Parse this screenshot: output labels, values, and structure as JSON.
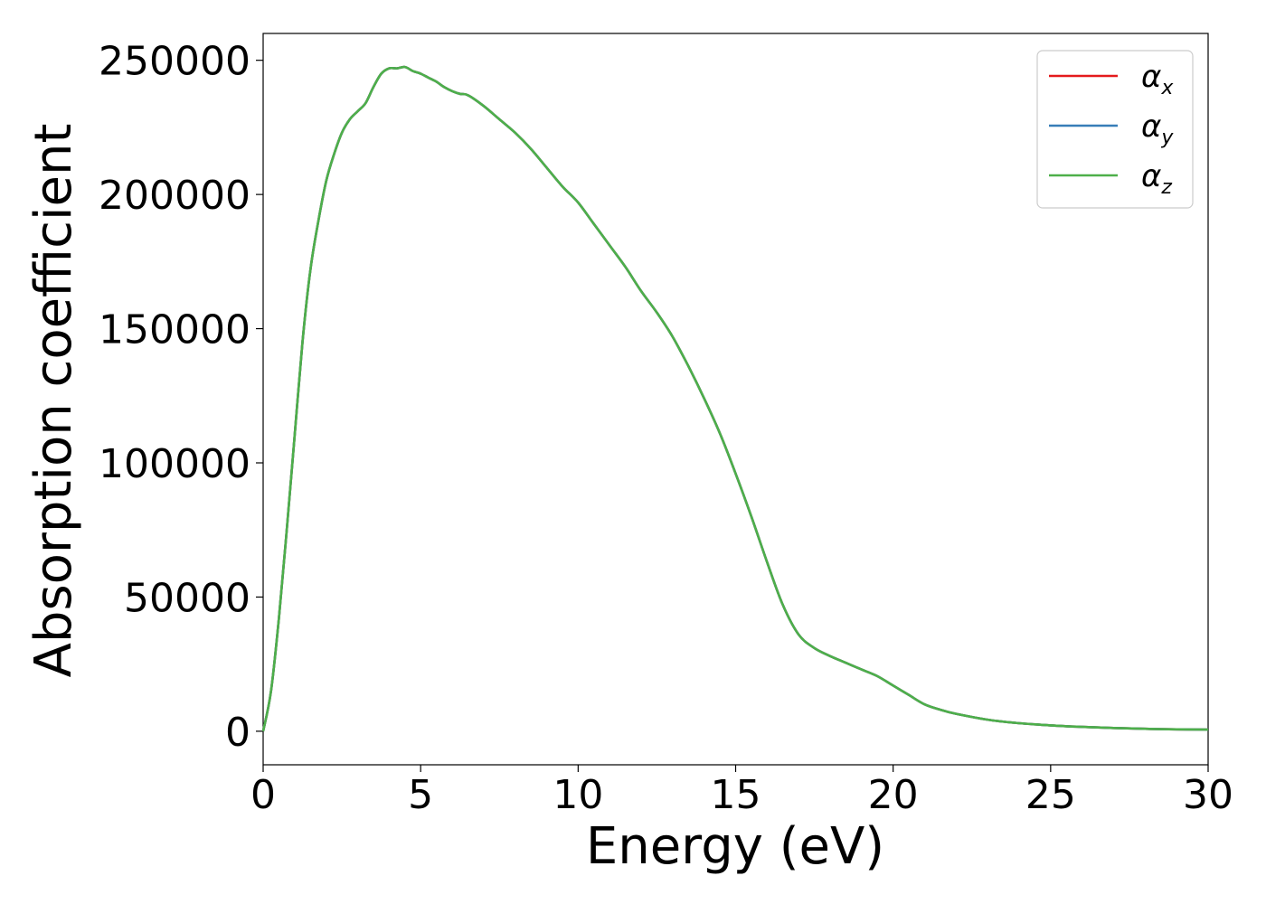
{
  "chart_data": {
    "type": "line",
    "xlabel": "Energy (eV)",
    "ylabel": "Absorption coefficient",
    "xlim": [
      0,
      30
    ],
    "ylim": [
      -12500,
      260000
    ],
    "xticks": [
      0,
      5,
      10,
      15,
      20,
      25,
      30
    ],
    "yticks": [
      0,
      50000,
      100000,
      150000,
      200000,
      250000
    ],
    "grid": false,
    "legend": "top-right",
    "x": [
      0,
      0.25,
      0.5,
      0.75,
      1.0,
      1.25,
      1.5,
      1.75,
      2.0,
      2.25,
      2.5,
      2.75,
      3.0,
      3.25,
      3.5,
      3.75,
      4.0,
      4.25,
      4.5,
      4.75,
      5.0,
      5.25,
      5.5,
      5.75,
      6.0,
      6.25,
      6.5,
      7.0,
      7.5,
      8.0,
      8.5,
      9.0,
      9.5,
      10.0,
      10.5,
      11.0,
      11.5,
      12.0,
      12.5,
      13.0,
      13.5,
      14.0,
      14.5,
      15.0,
      15.5,
      16.0,
      16.5,
      17.0,
      17.5,
      18.0,
      18.5,
      19.0,
      19.5,
      20.0,
      20.5,
      21.0,
      21.5,
      22.0,
      23.0,
      24.0,
      25.0,
      26.0,
      27.0,
      28.0,
      29.0,
      30.0
    ],
    "series": [
      {
        "name": "αx",
        "color": "#e41a1c",
        "values": [
          0,
          15000,
          42000,
          75000,
          110000,
          145000,
          172000,
          190000,
          205000,
          215000,
          223000,
          228000,
          231000,
          234000,
          240000,
          245000,
          247000,
          247000,
          247500,
          246000,
          245000,
          243500,
          242000,
          240000,
          238500,
          237500,
          237000,
          233000,
          228000,
          223000,
          217000,
          210000,
          203000,
          197000,
          189000,
          181000,
          173000,
          164000,
          156000,
          147000,
          136000,
          124000,
          111000,
          96000,
          80000,
          63000,
          47000,
          36000,
          31000,
          28000,
          25500,
          23000,
          20500,
          17000,
          13500,
          10000,
          8000,
          6500,
          4300,
          3000,
          2200,
          1600,
          1200,
          900,
          700,
          600
        ]
      },
      {
        "name": "αy",
        "color": "#377eb8",
        "values": [
          0,
          15000,
          42000,
          75000,
          110000,
          145000,
          172000,
          190000,
          205000,
          215000,
          223000,
          228000,
          231000,
          234000,
          240000,
          245000,
          247000,
          247000,
          247500,
          246000,
          245000,
          243500,
          242000,
          240000,
          238500,
          237500,
          237000,
          233000,
          228000,
          223000,
          217000,
          210000,
          203000,
          197000,
          189000,
          181000,
          173000,
          164000,
          156000,
          147000,
          136000,
          124000,
          111000,
          96000,
          80000,
          63000,
          47000,
          36000,
          31000,
          28000,
          25500,
          23000,
          20500,
          17000,
          13500,
          10000,
          8000,
          6500,
          4300,
          3000,
          2200,
          1600,
          1200,
          900,
          700,
          600
        ]
      },
      {
        "name": "αz",
        "color": "#4daf4a",
        "values": [
          0,
          15000,
          42000,
          75000,
          110000,
          145000,
          172000,
          190000,
          205000,
          215000,
          223000,
          228000,
          231000,
          234000,
          240000,
          245000,
          247000,
          247000,
          247500,
          246000,
          245000,
          243500,
          242000,
          240000,
          238500,
          237500,
          237000,
          233000,
          228000,
          223000,
          217000,
          210000,
          203000,
          197000,
          189000,
          181000,
          173000,
          164000,
          156000,
          147000,
          136000,
          124000,
          111000,
          96000,
          80000,
          63000,
          47000,
          36000,
          31000,
          28000,
          25500,
          23000,
          20500,
          17000,
          13500,
          10000,
          8000,
          6500,
          4300,
          3000,
          2200,
          1600,
          1200,
          900,
          700,
          600
        ]
      }
    ],
    "legend_entries": [
      {
        "symbol": "α",
        "sub": "x"
      },
      {
        "symbol": "α",
        "sub": "y"
      },
      {
        "symbol": "α",
        "sub": "z"
      }
    ]
  }
}
